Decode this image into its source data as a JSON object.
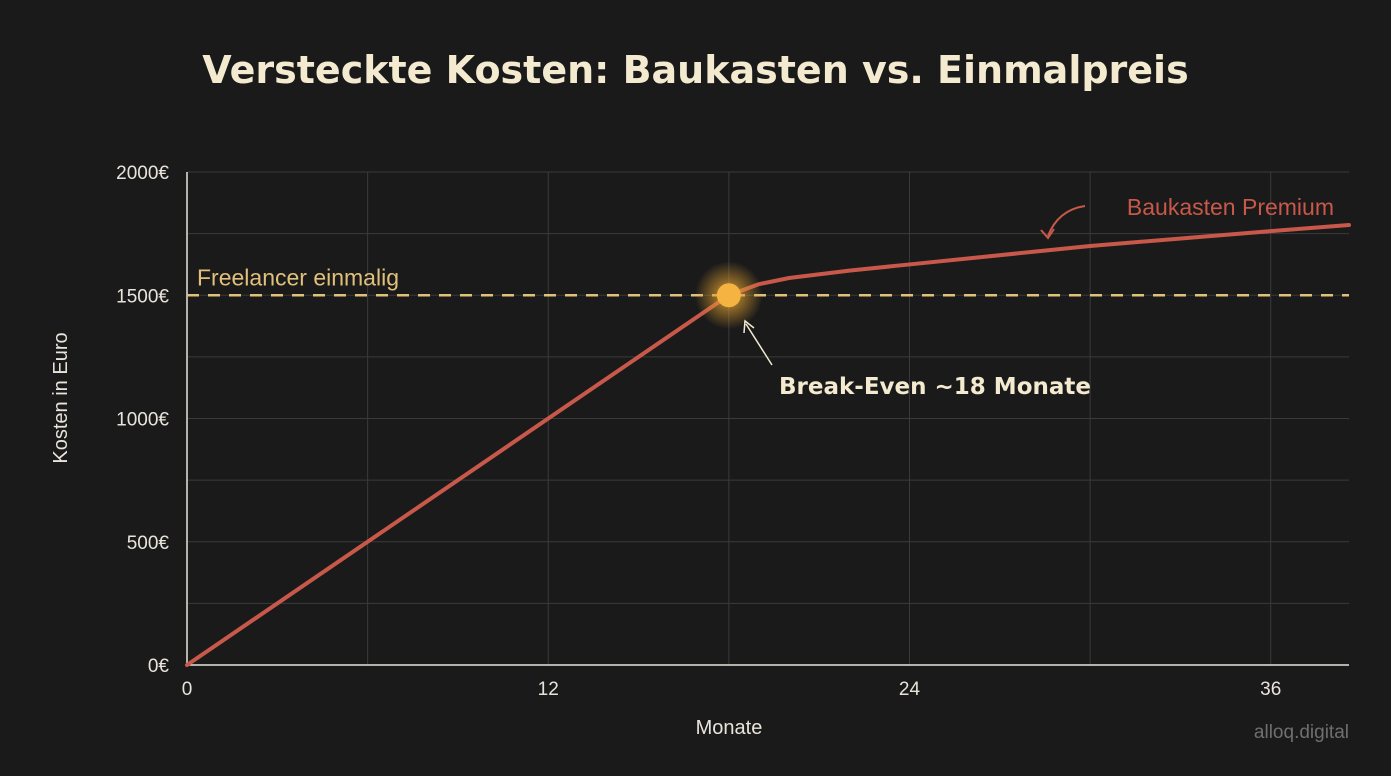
{
  "chart_data": {
    "type": "line",
    "title": "Versteckte Kosten: Baukasten vs. Einmalpreis",
    "xlabel": "Monate",
    "ylabel": "Kosten in Euro",
    "xlim": [
      0,
      38.6
    ],
    "ylim": [
      0,
      2000
    ],
    "xticks": [
      0,
      12,
      24,
      36
    ],
    "xtick_labels": [
      "0",
      "12",
      "24",
      "36"
    ],
    "yticks": [
      0,
      500,
      1000,
      1500,
      2000
    ],
    "ytick_labels": [
      "0€",
      "500€",
      "1000€",
      "1500€",
      "2000€"
    ],
    "grid": true,
    "series": [
      {
        "name": "Baukasten Premium",
        "color": "#c8584a",
        "style": "solid",
        "x": [
          0,
          18,
          19,
          20,
          22,
          24,
          30,
          36,
          38.6
        ],
        "y": [
          0,
          1500,
          1545,
          1570,
          1600,
          1625,
          1700,
          1760,
          1785
        ]
      },
      {
        "name": "Freelancer einmalig",
        "color": "#e0c07a",
        "style": "dashed",
        "x": [
          0,
          38.6
        ],
        "y": [
          1500,
          1500
        ]
      }
    ],
    "annotations": [
      {
        "text": "Break-Even ~18 Monate",
        "x": 18,
        "y": 1500,
        "color": "#f3ead0"
      }
    ]
  },
  "watermark": "alloq.digital"
}
